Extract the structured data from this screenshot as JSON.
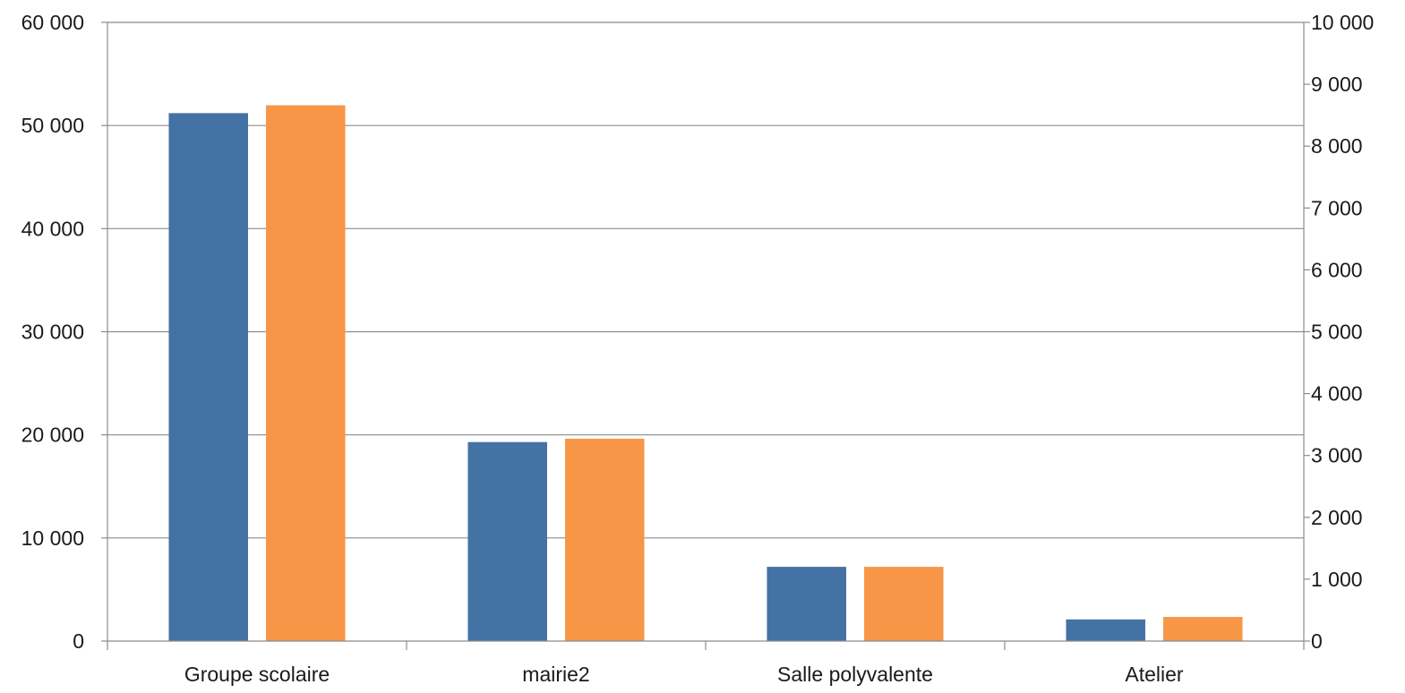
{
  "chart_data": {
    "type": "bar",
    "title": "",
    "xlabel": "",
    "ylabel": "",
    "categories": [
      "Groupe scolaire",
      "mairie2",
      "Salle polyvalente",
      "Atelier"
    ],
    "series": [
      {
        "axis": "left",
        "color": "#4472a4",
        "values": [
          51200,
          19300,
          7200,
          2100
        ]
      },
      {
        "axis": "right",
        "color": "#f79646",
        "values": [
          8660,
          3270,
          1200,
          390
        ]
      }
    ],
    "ylim": [
      0,
      60000
    ],
    "y2lim": [
      0,
      10000
    ],
    "yticks": [
      "0",
      "10 000",
      "20 000",
      "30 000",
      "40 000",
      "50 000",
      "60 000"
    ],
    "y2ticks": [
      "0",
      "1 000",
      "2 000",
      "3 000",
      "4 000",
      "5 000",
      "6 000",
      "7 000",
      "8 000",
      "9 000",
      "10 000"
    ],
    "grid": true,
    "legend": "none"
  }
}
